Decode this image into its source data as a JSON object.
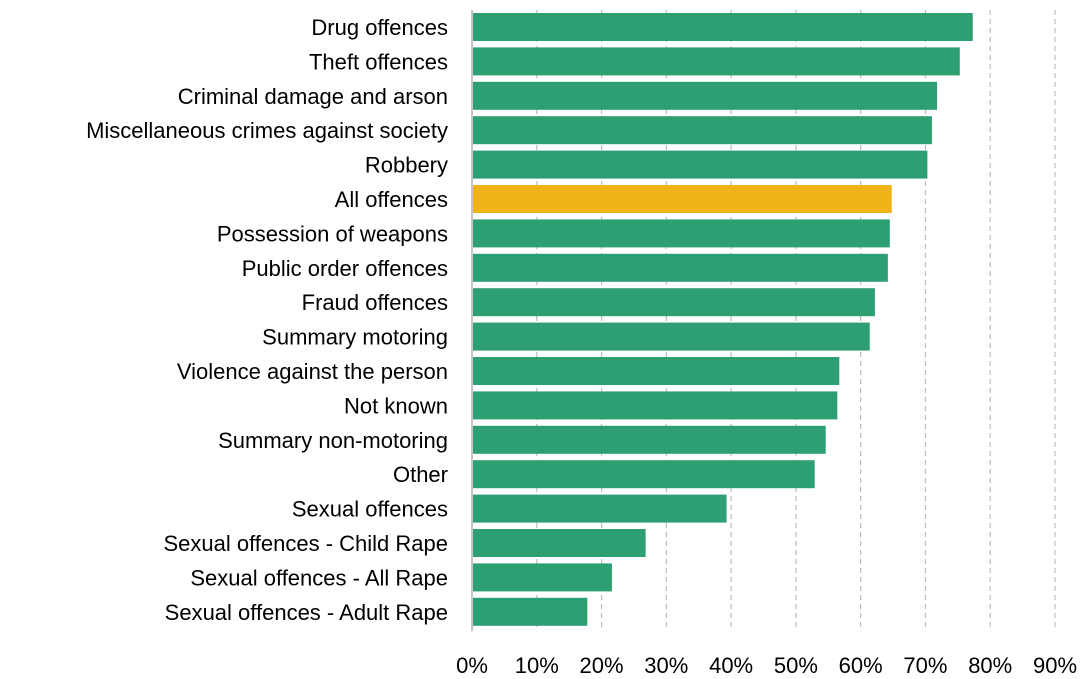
{
  "chart_data": {
    "type": "bar",
    "orientation": "horizontal",
    "title": "",
    "xlabel": "",
    "ylabel": "",
    "xlim": [
      0,
      90
    ],
    "x_ticks": [
      "0%",
      "10%",
      "20%",
      "30%",
      "40%",
      "50%",
      "60%",
      "70%",
      "80%",
      "90%"
    ],
    "grid": "vertical dashed",
    "legend": "none",
    "categories": [
      "Drug offences",
      "Theft offences",
      "Criminal damage and arson",
      "Miscellaneous crimes against society",
      "Robbery",
      "All offences",
      "Possession of weapons",
      "Public order offences",
      "Fraud offences",
      "Summary motoring",
      "Violence against the person",
      "Not known",
      "Summary non-motoring",
      "Other",
      "Sexual offences",
      "Sexual offences - Child Rape",
      "Sexual offences - All Rape",
      "Sexual offences - Adult Rape"
    ],
    "values": [
      77.3,
      75.3,
      71.8,
      71.0,
      70.3,
      64.8,
      64.5,
      64.2,
      62.2,
      61.4,
      56.7,
      56.4,
      54.6,
      52.9,
      39.3,
      26.8,
      21.6,
      17.8
    ],
    "highlight_category": "All offences",
    "colors": {
      "bar": "#2e9e73",
      "highlight": "#f0b418",
      "grid": "#bdbdbd",
      "axis": "#9e9e9e"
    }
  }
}
